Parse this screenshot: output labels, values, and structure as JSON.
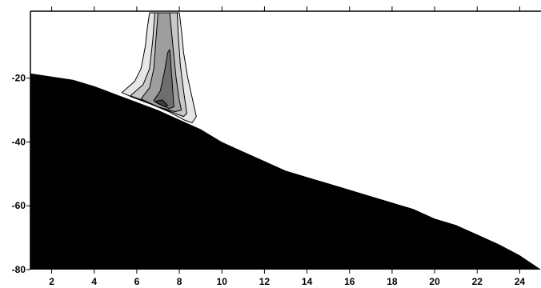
{
  "chart_data": {
    "type": "area",
    "title": "",
    "xlabel": "",
    "ylabel": "",
    "xlim": [
      1,
      25
    ],
    "ylim": [
      -80,
      1
    ],
    "grid": false,
    "x_ticks": [
      2,
      4,
      6,
      8,
      10,
      12,
      14,
      16,
      18,
      20,
      22,
      24
    ],
    "x_tick_labels": [
      "2",
      "4",
      "6",
      "8",
      "10",
      "12",
      "14",
      "16",
      "18",
      "20",
      "22",
      "24"
    ],
    "y_ticks": [
      -20,
      -40,
      -60,
      -80
    ],
    "y_tick_labels": [
      "-20",
      "-40",
      "-60",
      "-80"
    ],
    "bottom_profile": {
      "fill": "#000000",
      "x": [
        1,
        2,
        3,
        4,
        5,
        6,
        7,
        8,
        9,
        10,
        11,
        12,
        13,
        14,
        15,
        16,
        17,
        18,
        19,
        20,
        21,
        22,
        23,
        24,
        25
      ],
      "y": [
        -18.5,
        -19.5,
        -20.5,
        -22.5,
        -25,
        -27.5,
        -30,
        -33,
        -36,
        -40,
        -43,
        -46,
        -49,
        -51,
        -53,
        -55,
        -57,
        -59,
        -61,
        -64,
        -66,
        -69,
        -72,
        -75.5,
        -80
      ]
    },
    "plume_contours": [
      {
        "level": 1,
        "fill": "#e6e6e6",
        "x": [
          5.3,
          5.9,
          6.2,
          6.4,
          6.5,
          6.6,
          6.8,
          7.2,
          7.6,
          8.0,
          8.1,
          8.2,
          8.4,
          8.6,
          8.8,
          8.6,
          8.2,
          7.5,
          6.6,
          5.8,
          5.3
        ],
        "y": [
          -24.5,
          -21.0,
          -17.0,
          -10.0,
          -4.0,
          0.5,
          0.5,
          0.5,
          0.5,
          0.5,
          -5.0,
          -12.0,
          -20.0,
          -26.0,
          -32.0,
          -34.0,
          -33.0,
          -30.5,
          -28.0,
          -26.0,
          -24.5
        ]
      },
      {
        "level": 2,
        "fill": "#c8c8c8",
        "x": [
          5.7,
          6.3,
          6.6,
          6.75,
          6.85,
          7.6,
          7.9,
          7.95,
          8.05,
          8.2,
          8.35,
          8.2,
          7.8,
          7.2,
          6.5,
          5.7
        ],
        "y": [
          -25.5,
          -22.0,
          -17.0,
          -8.0,
          0.5,
          0.5,
          0.5,
          -7.0,
          -16.0,
          -24.0,
          -31.0,
          -32.0,
          -31.0,
          -29.5,
          -27.5,
          -25.5
        ]
      },
      {
        "level": 3,
        "fill": "#9e9e9e",
        "x": [
          6.2,
          6.6,
          6.8,
          6.9,
          7.0,
          7.55,
          7.7,
          7.85,
          8.0,
          8.1,
          7.8,
          7.0,
          6.2
        ],
        "y": [
          -26.5,
          -23.0,
          -17.0,
          -8.0,
          0.5,
          0.5,
          -10.0,
          -20.0,
          -27.0,
          -30.0,
          -30.5,
          -29.0,
          -26.5
        ]
      },
      {
        "level": 4,
        "fill": "#6e6e6e",
        "x": [
          6.8,
          7.1,
          7.3,
          7.45,
          7.55,
          7.75,
          7.5,
          7.0,
          6.8
        ],
        "y": [
          -27.0,
          -24.0,
          -18.0,
          -12.0,
          -11.0,
          -29.0,
          -29.5,
          -28.0,
          -27.0
        ]
      },
      {
        "level": 5,
        "fill": "#3c3c3c",
        "x": [
          6.85,
          7.2,
          7.45,
          7.3,
          6.85
        ],
        "y": [
          -27.3,
          -26.8,
          -28.5,
          -29.0,
          -27.3
        ]
      }
    ]
  }
}
